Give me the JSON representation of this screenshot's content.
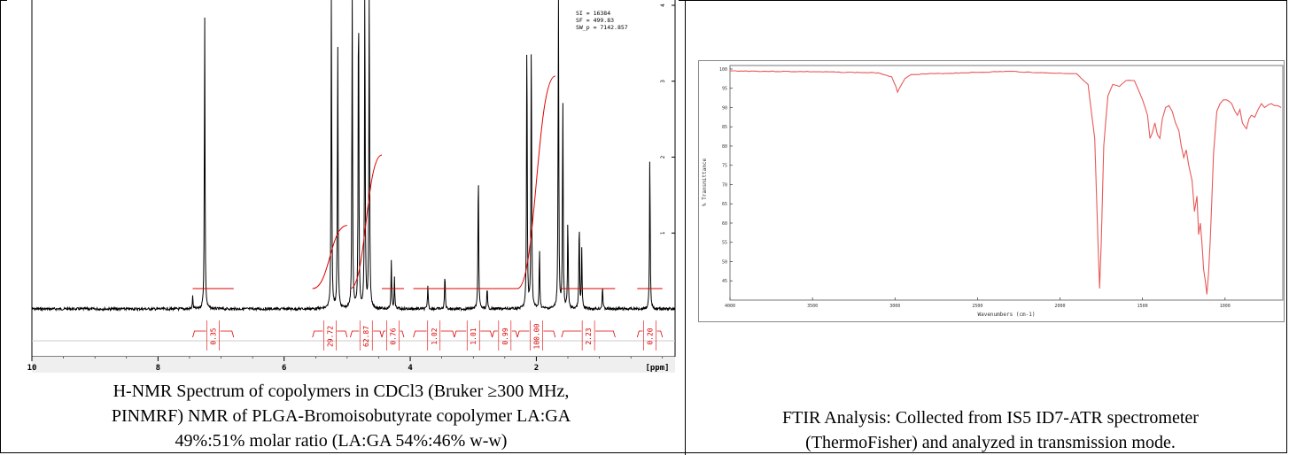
{
  "nmr": {
    "chart_data": {
      "type": "line",
      "x_unit_label": "[ppm]",
      "xlim": [
        10,
        -0.2
      ],
      "x_ticks": [
        "10",
        "8",
        "6",
        "4",
        "2",
        "[ppm]"
      ],
      "y_ticks": [
        "0",
        "1",
        "2",
        "3",
        "4"
      ],
      "params": [
        "SI = 16384",
        "SF = 499.83",
        "SW_p = 7142.857"
      ],
      "peaks": [
        {
          "x": 7.26,
          "h": 1.0
        },
        {
          "x": 7.45,
          "h": 0.04
        },
        {
          "x": 5.25,
          "h": 1.1
        },
        {
          "x": 5.15,
          "h": 0.9
        },
        {
          "x": 4.92,
          "h": 1.1
        },
        {
          "x": 4.82,
          "h": 1.1
        },
        {
          "x": 4.72,
          "h": 1.1
        },
        {
          "x": 4.65,
          "h": 1.1
        },
        {
          "x": 4.3,
          "h": 0.16
        },
        {
          "x": 4.25,
          "h": 0.1
        },
        {
          "x": 3.72,
          "h": 0.08
        },
        {
          "x": 3.45,
          "h": 0.12
        },
        {
          "x": 2.92,
          "h": 0.48
        },
        {
          "x": 2.78,
          "h": 0.07
        },
        {
          "x": 2.15,
          "h": 0.96
        },
        {
          "x": 2.08,
          "h": 0.95
        },
        {
          "x": 1.95,
          "h": 0.2
        },
        {
          "x": 1.65,
          "h": 1.1
        },
        {
          "x": 1.58,
          "h": 0.7
        },
        {
          "x": 1.5,
          "h": 0.3
        },
        {
          "x": 1.32,
          "h": 0.3
        },
        {
          "x": 1.28,
          "h": 0.2
        },
        {
          "x": 0.95,
          "h": 0.08
        },
        {
          "x": 0.2,
          "h": 0.52
        }
      ],
      "integrals": [
        {
          "from": 7.45,
          "to": 6.8,
          "value": "0.35"
        },
        {
          "from": 5.55,
          "to": 5.0,
          "value": "29.72"
        },
        {
          "from": 4.95,
          "to": 4.45,
          "value": "62.87"
        },
        {
          "from": 4.45,
          "to": 4.1,
          "value": "0.76"
        },
        {
          "from": 3.95,
          "to": 3.3,
          "value": "1.02"
        },
        {
          "from": 3.3,
          "to": 2.7,
          "value": "1.01"
        },
        {
          "from": 2.7,
          "to": 2.3,
          "value": "0.99"
        },
        {
          "from": 2.3,
          "to": 1.7,
          "value": "100.00"
        },
        {
          "from": 1.6,
          "to": 0.75,
          "value": "2.23"
        },
        {
          "from": 0.4,
          "to": 0.0,
          "value": "0.20"
        }
      ]
    },
    "caption": {
      "line1": "H-NMR Spectrum of copolymers in CDCl3 (Bruker ≥300 MHz,",
      "line2": "PINMRF) NMR of PLGA-Bromoisobutyrate copolymer LA:GA",
      "line3": "49%:51% molar ratio (LA:GA 54%:46% w-w)"
    }
  },
  "ftir": {
    "chart_data": {
      "type": "line",
      "xlabel": "Wavenumbers (cm-1)",
      "ylabel": "% Transmittance",
      "xlim": [
        4000,
        650
      ],
      "ylim": [
        40,
        100
      ],
      "x_ticks": [
        "4000",
        "3500",
        "3000",
        "2500",
        "2000",
        "1500",
        "1000"
      ],
      "y_ticks": [
        "100",
        "95",
        "90",
        "85",
        "80",
        "75",
        "70",
        "65",
        "60",
        "55",
        "50",
        "45"
      ],
      "series": [
        {
          "color": "#e8595a",
          "points": [
            [
              4000,
              99.5
            ],
            [
              3500,
              99.3
            ],
            [
              3100,
              99.0
            ],
            [
              3020,
              98.0
            ],
            [
              2995,
              95.5
            ],
            [
              2985,
              94.0
            ],
            [
              2960,
              96.0
            ],
            [
              2940,
              97.5
            ],
            [
              2900,
              98.6
            ],
            [
              2600,
              99.0
            ],
            [
              2300,
              99.4
            ],
            [
              2100,
              99.0
            ],
            [
              1900,
              98.8
            ],
            [
              1830,
              96.0
            ],
            [
              1790,
              82.0
            ],
            [
              1770,
              55.0
            ],
            [
              1760,
              43.0
            ],
            [
              1750,
              55.0
            ],
            [
              1735,
              80.0
            ],
            [
              1710,
              93.0
            ],
            [
              1680,
              96.0
            ],
            [
              1640,
              95.5
            ],
            [
              1600,
              97.0
            ],
            [
              1550,
              97.0
            ],
            [
              1500,
              92.0
            ],
            [
              1470,
              88.0
            ],
            [
              1455,
              82.0
            ],
            [
              1440,
              83.5
            ],
            [
              1425,
              86.0
            ],
            [
              1410,
              83.0
            ],
            [
              1395,
              82.0
            ],
            [
              1380,
              87.0
            ],
            [
              1360,
              90.0
            ],
            [
              1340,
              90.5
            ],
            [
              1320,
              89.0
            ],
            [
              1300,
              86.0
            ],
            [
              1280,
              84.0
            ],
            [
              1265,
              80.0
            ],
            [
              1250,
              77.0
            ],
            [
              1235,
              79.0
            ],
            [
              1220,
              75.0
            ],
            [
              1200,
              71.0
            ],
            [
              1185,
              63.0
            ],
            [
              1170,
              67.0
            ],
            [
              1160,
              57.0
            ],
            [
              1150,
              60.0
            ],
            [
              1140,
              55.0
            ],
            [
              1130,
              48.0
            ],
            [
              1120,
              45.0
            ],
            [
              1110,
              41.5
            ],
            [
              1100,
              47.0
            ],
            [
              1090,
              55.0
            ],
            [
              1080,
              66.0
            ],
            [
              1070,
              78.0
            ],
            [
              1050,
              89.0
            ],
            [
              1030,
              91.0
            ],
            [
              1010,
              92.0
            ],
            [
              990,
              92.0
            ],
            [
              960,
              91.0
            ],
            [
              940,
              89.0
            ],
            [
              925,
              88.0
            ],
            [
              910,
              89.5
            ],
            [
              895,
              86.0
            ],
            [
              880,
              85.0
            ],
            [
              870,
              84.5
            ],
            [
              855,
              87.0
            ],
            [
              840,
              88.0
            ],
            [
              820,
              87.5
            ],
            [
              800,
              89.5
            ],
            [
              780,
              91.0
            ],
            [
              760,
              90.0
            ],
            [
              745,
              90.5
            ],
            [
              720,
              91.0
            ],
            [
              700,
              90.5
            ],
            [
              680,
              90.5
            ],
            [
              660,
              90.0
            ]
          ]
        }
      ]
    },
    "caption": {
      "line1": "FTIR Analysis: Collected from IS5 ID7-ATR spectrometer",
      "line2": "(ThermoFisher) and analyzed in transmission mode."
    }
  }
}
